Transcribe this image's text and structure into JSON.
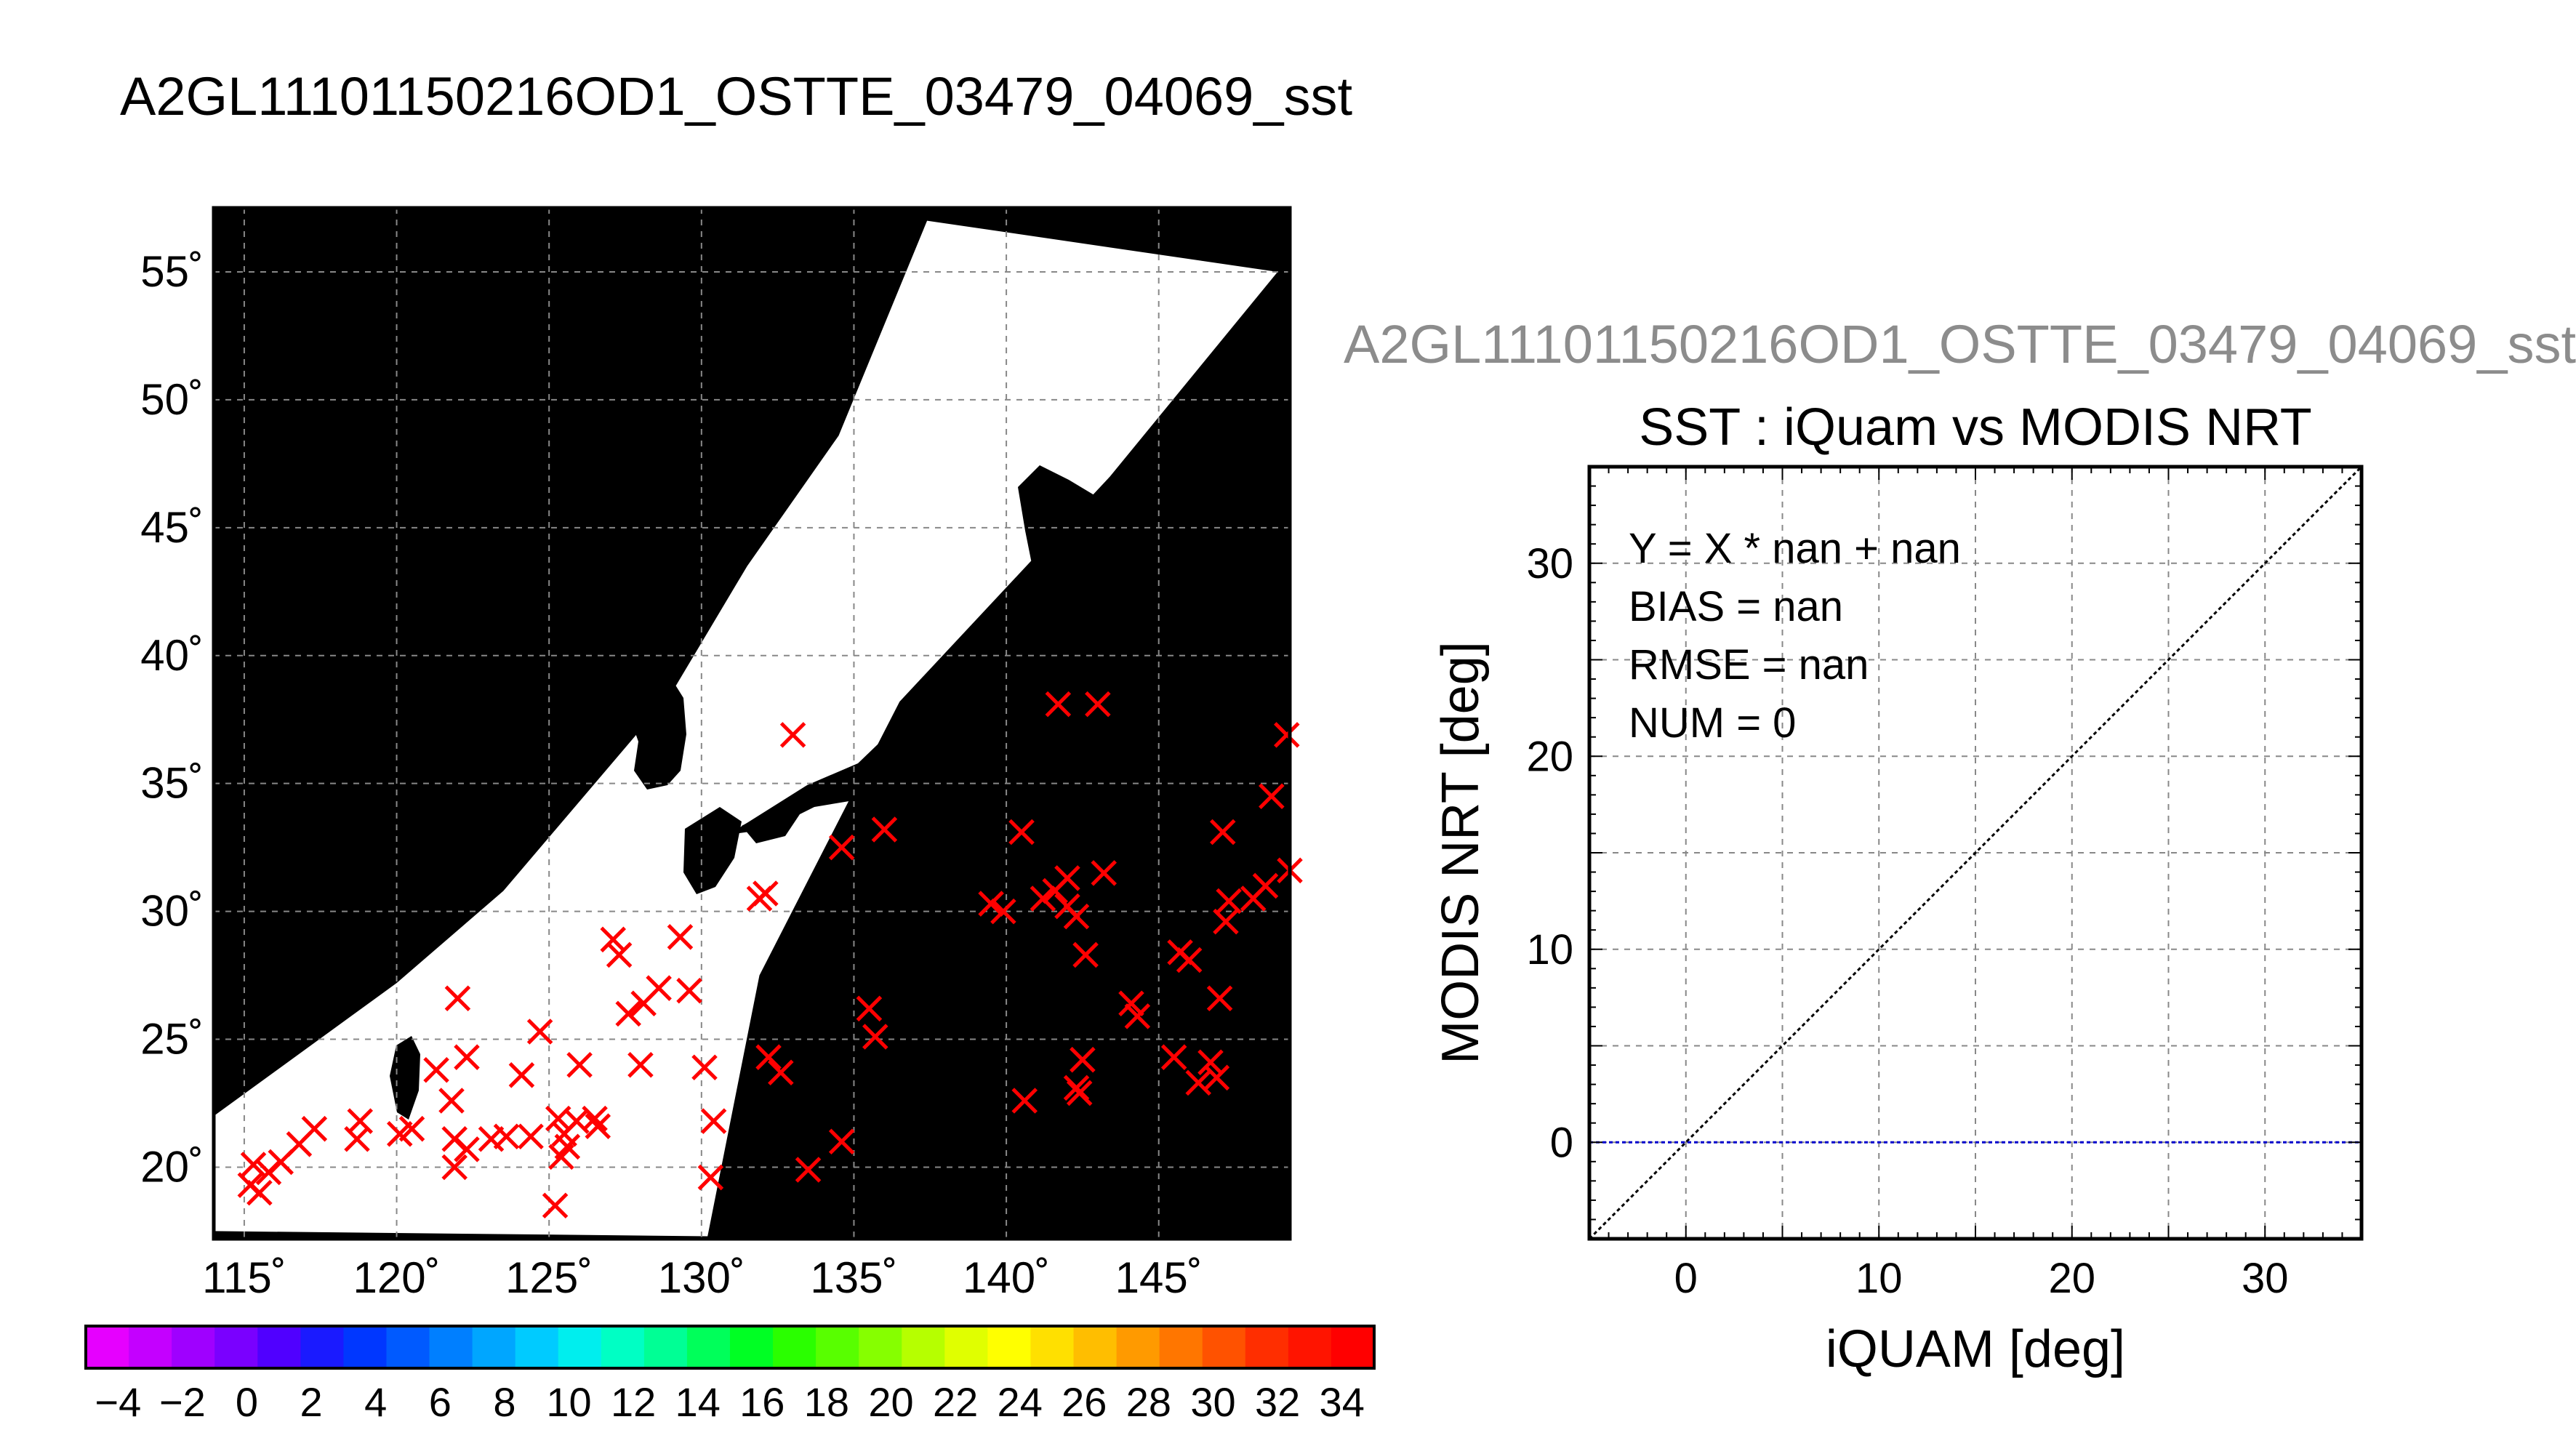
{
  "page": {
    "title": "A2GL11101150216OD1_OSTTE_03479_04069_sst",
    "scatter_header": "A2GL11101150216OD1_OSTTE_03479_04069_sst"
  },
  "chart_data": [
    {
      "type": "map",
      "map_kind": "SST swath map with in-situ match-up markers",
      "background_color": "#000000",
      "land_color": "#000000",
      "no_data_color": "#ffffff",
      "marker_color": "#ff0000",
      "marker_symbol": "x",
      "grid": true,
      "xlim": [
        114,
        149.3
      ],
      "ylim": [
        17.2,
        57.5
      ],
      "x_ticks": [
        115,
        120,
        125,
        130,
        135,
        140,
        145
      ],
      "x_tick_labels": [
        "115˚",
        "120˚",
        "125˚",
        "130˚",
        "135˚",
        "140˚",
        "145˚"
      ],
      "y_ticks": [
        20,
        25,
        30,
        35,
        40,
        45,
        50,
        55
      ],
      "y_tick_labels": [
        "20˚",
        "25˚",
        "30˚",
        "35˚",
        "40˚",
        "45˚",
        "50˚",
        "55˚"
      ],
      "swath_corners_lonlat": [
        [
          137.4,
          57.0
        ],
        [
          148.9,
          55.0
        ],
        [
          143.4,
          47.0
        ],
        [
          136.5,
          38.2
        ],
        [
          131.9,
          27.5
        ],
        [
          130.2,
          17.3
        ],
        [
          114,
          17.5
        ],
        [
          114,
          22.0
        ],
        [
          120.0,
          27.2
        ],
        [
          123.5,
          30.8
        ],
        [
          129.0,
          38.5
        ],
        [
          131.5,
          43.5
        ],
        [
          134.5,
          48.6
        ]
      ],
      "match_points": [
        [
          115.2,
          19.3
        ],
        [
          115.5,
          19.0
        ],
        [
          115.8,
          19.8
        ],
        [
          115.3,
          20.1
        ],
        [
          116.2,
          20.2
        ],
        [
          116.8,
          20.9
        ],
        [
          117.3,
          21.5
        ],
        [
          118.8,
          21.8
        ],
        [
          118.7,
          21.1
        ],
        [
          120.1,
          21.3
        ],
        [
          120.5,
          21.5
        ],
        [
          121.3,
          23.8
        ],
        [
          121.8,
          22.6
        ],
        [
          122.0,
          26.6
        ],
        [
          122.3,
          24.3
        ],
        [
          121.9,
          21.1
        ],
        [
          121.9,
          20.0
        ],
        [
          122.3,
          20.7
        ],
        [
          123.1,
          21.1
        ],
        [
          123.6,
          21.2
        ],
        [
          124.1,
          23.6
        ],
        [
          124.4,
          21.2
        ],
        [
          124.7,
          25.3
        ],
        [
          125.3,
          21.9
        ],
        [
          125.5,
          21.3
        ],
        [
          125.9,
          21.8
        ],
        [
          125.4,
          20.4
        ],
        [
          125.6,
          20.8
        ],
        [
          126.0,
          24.0
        ],
        [
          126.6,
          21.6
        ],
        [
          126.5,
          21.9
        ],
        [
          125.2,
          18.5
        ],
        [
          127.1,
          28.9
        ],
        [
          127.3,
          28.3
        ],
        [
          127.6,
          26.0
        ],
        [
          128.0,
          24.0
        ],
        [
          128.1,
          26.4
        ],
        [
          128.6,
          27.0
        ],
        [
          129.3,
          29.0
        ],
        [
          129.6,
          26.9
        ],
        [
          130.1,
          23.9
        ],
        [
          130.3,
          19.6
        ],
        [
          130.4,
          21.8
        ],
        [
          132.1,
          30.7
        ],
        [
          131.9,
          30.5
        ],
        [
          132.2,
          24.3
        ],
        [
          132.6,
          23.7
        ],
        [
          133.0,
          36.9
        ],
        [
          133.5,
          19.9
        ],
        [
          134.6,
          32.5
        ],
        [
          134.6,
          21.0
        ],
        [
          135.5,
          26.2
        ],
        [
          135.7,
          25.1
        ],
        [
          136.0,
          33.2
        ],
        [
          139.5,
          30.3
        ],
        [
          139.9,
          30.0
        ],
        [
          140.5,
          33.1
        ],
        [
          141.7,
          38.1
        ],
        [
          143.0,
          38.1
        ],
        [
          141.2,
          30.5
        ],
        [
          142.0,
          31.3
        ],
        [
          141.6,
          30.8
        ],
        [
          142.0,
          30.2
        ],
        [
          143.2,
          31.5
        ],
        [
          142.6,
          28.3
        ],
        [
          144.1,
          26.4
        ],
        [
          145.5,
          24.3
        ],
        [
          144.3,
          25.9
        ],
        [
          142.5,
          24.2
        ],
        [
          142.4,
          22.9
        ],
        [
          142.3,
          23.1
        ],
        [
          140.6,
          22.6
        ],
        [
          145.7,
          28.4
        ],
        [
          146.3,
          23.3
        ],
        [
          146.7,
          24.1
        ],
        [
          146.9,
          23.5
        ],
        [
          147.0,
          26.6
        ],
        [
          147.2,
          29.6
        ],
        [
          147.3,
          30.4
        ],
        [
          147.1,
          33.1
        ],
        [
          148.7,
          34.5
        ],
        [
          149.2,
          36.9
        ],
        [
          148.1,
          30.5
        ],
        [
          148.5,
          31.0
        ],
        [
          149.3,
          31.6
        ],
        [
          146.0,
          28.1
        ],
        [
          142.3,
          29.8
        ]
      ]
    },
    {
      "type": "colorbar",
      "ticks": [
        -4,
        -2,
        0,
        2,
        4,
        6,
        8,
        10,
        12,
        14,
        16,
        18,
        20,
        22,
        24,
        26,
        28,
        30,
        32,
        34
      ],
      "tick_labels": [
        "−4",
        "−2",
        "0",
        "2",
        "4",
        "6",
        "8",
        "10",
        "12",
        "14",
        "16",
        "18",
        "20",
        "22",
        "24",
        "26",
        "28",
        "30",
        "32",
        "34"
      ],
      "range": [
        -5,
        35
      ],
      "colors": [
        "#e600ff",
        "#c400ff",
        "#9f00ff",
        "#7a00ff",
        "#5000ff",
        "#1a1aff",
        "#0037ff",
        "#005aff",
        "#007fff",
        "#00a6ff",
        "#00cbff",
        "#00eeee",
        "#00ffc4",
        "#00ff95",
        "#00ff5a",
        "#00ff24",
        "#2aff00",
        "#58ff00",
        "#86ff00",
        "#b6ff00",
        "#e0ff00",
        "#ffff00",
        "#ffe000",
        "#ffbe00",
        "#ff9a00",
        "#ff7600",
        "#ff5200",
        "#ff2e00",
        "#ff1400",
        "#ff0000"
      ]
    },
    {
      "type": "scatter",
      "title": "SST : iQuam vs MODIS NRT",
      "xlabel": "iQUAM [deg]",
      "ylabel": "MODIS NRT [deg]",
      "xlim": [
        -5,
        35
      ],
      "ylim": [
        -5,
        35
      ],
      "x_ticks": [
        0,
        10,
        20,
        30
      ],
      "y_ticks": [
        0,
        10,
        20,
        30
      ],
      "grid": true,
      "grid_step": 5,
      "stats": [
        "Y = X * nan + nan",
        "BIAS = nan",
        "RMSE = nan",
        "NUM = 0"
      ],
      "series": [
        {
          "kind": "one-to-one",
          "x": [
            -5,
            35
          ],
          "y": [
            -5,
            35
          ],
          "color": "#000000"
        },
        {
          "kind": "zero-line",
          "x": [
            -5,
            35
          ],
          "y": [
            0,
            0
          ],
          "color": "#0000cc"
        }
      ],
      "points": []
    }
  ]
}
